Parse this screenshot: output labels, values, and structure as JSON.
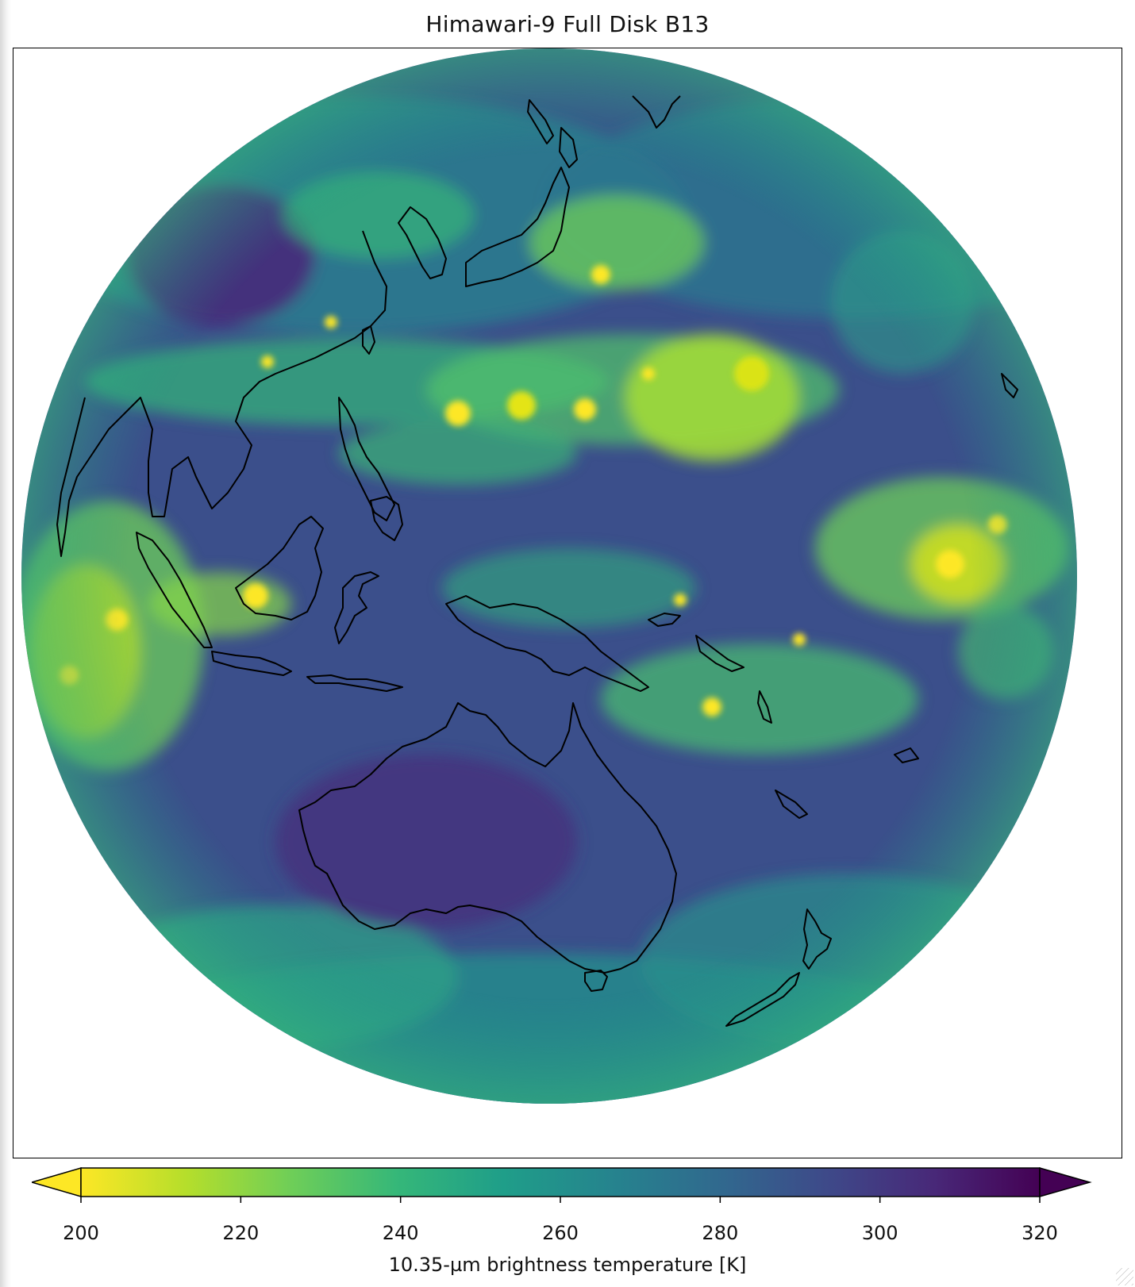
{
  "title": "Himawari-9 Full Disk B13",
  "colorbar": {
    "label": "10.35-µm brightness temperature [K]",
    "ticks": [
      "200",
      "220",
      "240",
      "260",
      "280",
      "300",
      "320"
    ],
    "min": 200,
    "max": 320,
    "extend": "both",
    "colormap": "viridis_r",
    "colors": [
      "#fde725",
      "#b5de2b",
      "#6ece58",
      "#35b779",
      "#1f9e89",
      "#26828e",
      "#31688e",
      "#3e4989",
      "#482878",
      "#440154"
    ]
  },
  "map": {
    "projection": "geostationary full disk",
    "coastline_color": "#000000",
    "space_color": "#ffffff"
  }
}
